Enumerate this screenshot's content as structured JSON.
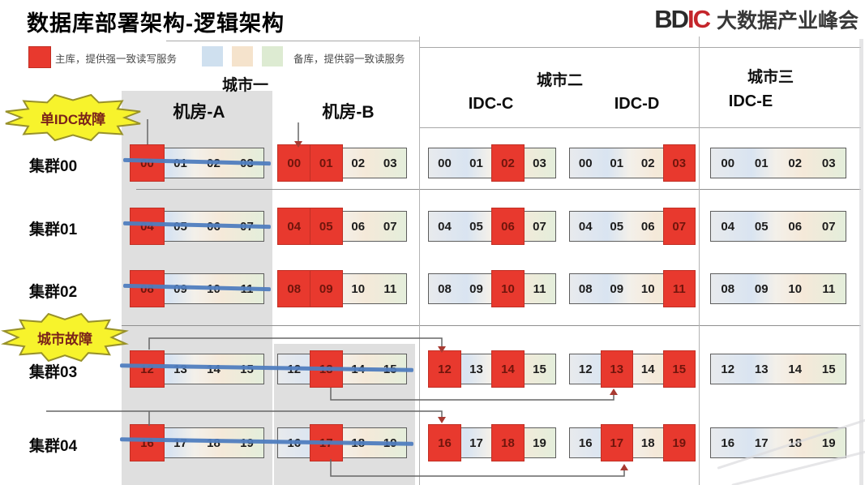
{
  "title": "数据库部署架构-逻辑架构",
  "logo": {
    "mark_dark": "BD",
    "mark_red": "IC",
    "name": "大数据产业峰会"
  },
  "legend": {
    "primary_label": "主库，提供强一致读写服务",
    "secondary_label": "备库，提供弱一致读服务",
    "primary_color": "#e8392e",
    "secondary_colors": [
      "#cfe0ef",
      "#f5e3cc",
      "#ddebd2"
    ]
  },
  "callouts": {
    "single_idc": "单IDC故障",
    "city": "城市故障"
  },
  "header": {
    "city1": "城市一",
    "roomA": "机房-A",
    "roomB": "机房-B",
    "city2": "城市二",
    "idcC": "IDC-C",
    "idcD": "IDC-D",
    "city3": "城市三",
    "idcE": "IDC-E"
  },
  "colors": {
    "strike_line_blue": "#4f7dbf",
    "callout_yellow": "#f7f32c",
    "column_band_gray": "#d9d9d9"
  },
  "clusters": [
    {
      "label": "集群00",
      "groups": [
        {
          "struck": true,
          "cells": [
            {
              "n": "00",
              "primary": true
            },
            {
              "n": "01"
            },
            {
              "n": "02"
            },
            {
              "n": "03"
            }
          ]
        },
        {
          "struck": false,
          "cells": [
            {
              "n": "00",
              "primary": true
            },
            {
              "n": "01",
              "primary": true
            },
            {
              "n": "02"
            },
            {
              "n": "03"
            }
          ]
        },
        {
          "struck": false,
          "cells": [
            {
              "n": "00"
            },
            {
              "n": "01"
            },
            {
              "n": "02",
              "primary": true
            },
            {
              "n": "03"
            }
          ]
        },
        {
          "struck": false,
          "cells": [
            {
              "n": "00"
            },
            {
              "n": "01"
            },
            {
              "n": "02"
            },
            {
              "n": "03",
              "primary": true
            }
          ]
        },
        {
          "struck": false,
          "cells": [
            {
              "n": "00"
            },
            {
              "n": "01"
            },
            {
              "n": "02"
            },
            {
              "n": "03"
            }
          ]
        }
      ]
    },
    {
      "label": "集群01",
      "groups": [
        {
          "struck": true,
          "cells": [
            {
              "n": "04",
              "primary": true
            },
            {
              "n": "05"
            },
            {
              "n": "06"
            },
            {
              "n": "07"
            }
          ]
        },
        {
          "struck": false,
          "cells": [
            {
              "n": "04",
              "primary": true
            },
            {
              "n": "05",
              "primary": true
            },
            {
              "n": "06"
            },
            {
              "n": "07"
            }
          ]
        },
        {
          "struck": false,
          "cells": [
            {
              "n": "04"
            },
            {
              "n": "05"
            },
            {
              "n": "06",
              "primary": true
            },
            {
              "n": "07"
            }
          ]
        },
        {
          "struck": false,
          "cells": [
            {
              "n": "04"
            },
            {
              "n": "05"
            },
            {
              "n": "06"
            },
            {
              "n": "07",
              "primary": true
            }
          ]
        },
        {
          "struck": false,
          "cells": [
            {
              "n": "04"
            },
            {
              "n": "05"
            },
            {
              "n": "06"
            },
            {
              "n": "07"
            }
          ]
        }
      ]
    },
    {
      "label": "集群02",
      "groups": [
        {
          "struck": true,
          "cells": [
            {
              "n": "08",
              "primary": true
            },
            {
              "n": "09"
            },
            {
              "n": "10"
            },
            {
              "n": "11"
            }
          ]
        },
        {
          "struck": false,
          "cells": [
            {
              "n": "08",
              "primary": true
            },
            {
              "n": "09",
              "primary": true
            },
            {
              "n": "10"
            },
            {
              "n": "11"
            }
          ]
        },
        {
          "struck": false,
          "cells": [
            {
              "n": "08"
            },
            {
              "n": "09"
            },
            {
              "n": "10",
              "primary": true
            },
            {
              "n": "11"
            }
          ]
        },
        {
          "struck": false,
          "cells": [
            {
              "n": "08"
            },
            {
              "n": "09"
            },
            {
              "n": "10"
            },
            {
              "n": "11",
              "primary": true
            }
          ]
        },
        {
          "struck": false,
          "cells": [
            {
              "n": "08"
            },
            {
              "n": "09"
            },
            {
              "n": "10"
            },
            {
              "n": "11"
            }
          ]
        }
      ]
    },
    {
      "label": "集群03",
      "groups": [
        {
          "struck": true,
          "cells": [
            {
              "n": "12",
              "primary": true
            },
            {
              "n": "13"
            },
            {
              "n": "14"
            },
            {
              "n": "15"
            }
          ]
        },
        {
          "struck": true,
          "cells": [
            {
              "n": "12"
            },
            {
              "n": "13",
              "primary": true
            },
            {
              "n": "14"
            },
            {
              "n": "15"
            }
          ]
        },
        {
          "struck": false,
          "cells": [
            {
              "n": "12",
              "primary": true
            },
            {
              "n": "13"
            },
            {
              "n": "14",
              "primary": true
            },
            {
              "n": "15"
            }
          ]
        },
        {
          "struck": false,
          "cells": [
            {
              "n": "12"
            },
            {
              "n": "13",
              "primary": true
            },
            {
              "n": "14"
            },
            {
              "n": "15",
              "primary": true
            }
          ]
        },
        {
          "struck": false,
          "cells": [
            {
              "n": "12"
            },
            {
              "n": "13"
            },
            {
              "n": "14"
            },
            {
              "n": "15"
            }
          ]
        }
      ]
    },
    {
      "label": "集群04",
      "groups": [
        {
          "struck": true,
          "cells": [
            {
              "n": "16",
              "primary": true
            },
            {
              "n": "17"
            },
            {
              "n": "18"
            },
            {
              "n": "19"
            }
          ]
        },
        {
          "struck": true,
          "cells": [
            {
              "n": "16"
            },
            {
              "n": "17",
              "primary": true
            },
            {
              "n": "18"
            },
            {
              "n": "19"
            }
          ]
        },
        {
          "struck": false,
          "cells": [
            {
              "n": "16",
              "primary": true
            },
            {
              "n": "17"
            },
            {
              "n": "18",
              "primary": true
            },
            {
              "n": "19"
            }
          ]
        },
        {
          "struck": false,
          "cells": [
            {
              "n": "16"
            },
            {
              "n": "17",
              "primary": true
            },
            {
              "n": "18"
            },
            {
              "n": "19",
              "primary": true
            }
          ]
        },
        {
          "struck": false,
          "cells": [
            {
              "n": "16"
            },
            {
              "n": "17"
            },
            {
              "n": "18"
            },
            {
              "n": "19"
            }
          ]
        }
      ]
    }
  ]
}
